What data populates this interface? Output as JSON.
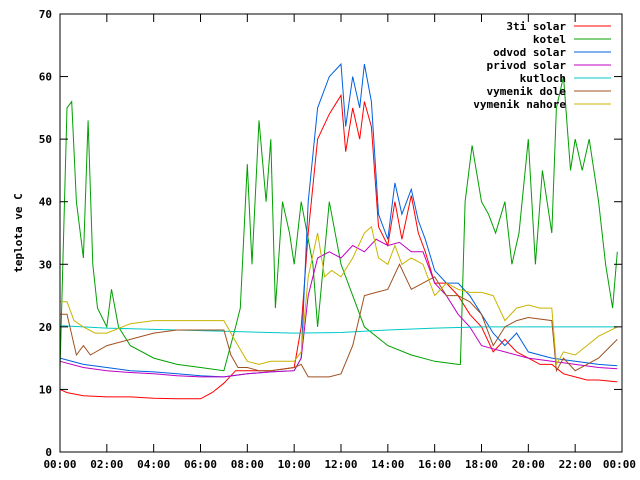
{
  "chart_data": {
    "type": "line",
    "title": "",
    "xlabel": "",
    "ylabel": "teplota ve C",
    "ylim": [
      0,
      70
    ],
    "yticks": [
      0,
      10,
      20,
      30,
      40,
      50,
      60,
      70
    ],
    "xlim": [
      0,
      24
    ],
    "xticks": [
      "00:00",
      "02:00",
      "04:00",
      "06:00",
      "08:00",
      "10:00",
      "12:00",
      "14:00",
      "16:00",
      "18:00",
      "20:00",
      "22:00",
      "00:00"
    ],
    "grid": false,
    "legend_position": "top-right",
    "series": [
      {
        "name": "3ti solar",
        "color": "#ff0000",
        "x": [
          0,
          0.3,
          1,
          2,
          3,
          4,
          5,
          6,
          6.5,
          7,
          7.5,
          8,
          9,
          10,
          10.3,
          10.6,
          11,
          11.5,
          12,
          12.2,
          12.5,
          12.8,
          13,
          13.3,
          13.6,
          14,
          14.3,
          14.6,
          15,
          15.3,
          15.6,
          16,
          16.5,
          17,
          17.5,
          18,
          18.5,
          19,
          19.5,
          20,
          20.5,
          21,
          21.5,
          22,
          22.5,
          23,
          23.8
        ],
        "y": [
          10,
          9.5,
          9,
          8.8,
          8.8,
          8.6,
          8.5,
          8.5,
          9.5,
          11,
          13,
          13,
          13,
          13.5,
          20,
          35,
          50,
          54,
          57,
          48,
          55,
          50,
          56,
          52,
          36,
          33,
          40,
          34,
          41,
          35,
          32,
          27,
          27,
          25,
          22,
          20,
          16,
          18,
          16,
          15,
          14,
          14,
          12.5,
          12,
          11.5,
          11.5,
          11.2
        ]
      },
      {
        "name": "kotel",
        "color": "#00a000",
        "x": [
          0,
          0.3,
          0.5,
          0.7,
          1,
          1.2,
          1.4,
          1.6,
          2,
          2.2,
          2.5,
          3,
          4,
          5,
          6,
          7,
          7.5,
          7.7,
          8,
          8.2,
          8.5,
          8.8,
          9,
          9.2,
          9.5,
          9.8,
          10,
          10.3,
          10.8,
          11,
          11.5,
          12,
          12.5,
          13,
          14,
          15,
          16,
          17,
          17.1,
          17.3,
          17.6,
          18,
          18.3,
          18.6,
          19,
          19.3,
          19.6,
          20,
          20.3,
          20.6,
          21,
          21.2,
          21.5,
          21.8,
          22,
          22.3,
          22.6,
          23,
          23.3,
          23.6,
          23.8
        ],
        "y": [
          13,
          55,
          56,
          40,
          31,
          53,
          30,
          23,
          20,
          26,
          20,
          17,
          15,
          14,
          13.5,
          13,
          20,
          23,
          46,
          30,
          53,
          40,
          50,
          23,
          40,
          35,
          30,
          40,
          30,
          20,
          40,
          30,
          25,
          20,
          17,
          15.5,
          14.5,
          14,
          14,
          40,
          49,
          40,
          38,
          35,
          40,
          30,
          35,
          50,
          30,
          45,
          35,
          55,
          60,
          45,
          50,
          45,
          50,
          40,
          30,
          23,
          32
        ]
      },
      {
        "name": "odvod solar",
        "color": "#0060e0",
        "x": [
          0,
          1,
          2,
          3,
          4,
          5,
          6,
          7,
          8,
          9,
          10,
          10.3,
          10.6,
          11,
          11.5,
          12,
          12.2,
          12.5,
          12.8,
          13,
          13.3,
          13.6,
          14,
          14.3,
          14.6,
          15,
          15.3,
          15.6,
          16,
          16.5,
          17,
          17.5,
          18,
          18.5,
          19,
          19.5,
          20,
          21,
          22,
          23,
          23.8
        ],
        "y": [
          15,
          14,
          13.5,
          13,
          12.8,
          12.5,
          12.2,
          12,
          12.5,
          12.8,
          13,
          15,
          40,
          55,
          60,
          62,
          52,
          60,
          55,
          62,
          56,
          38,
          34,
          43,
          38,
          42,
          37,
          34,
          29,
          27,
          27,
          25,
          22,
          19,
          17,
          19,
          16,
          15,
          14.5,
          14,
          13.8
        ]
      },
      {
        "name": "privod solar",
        "color": "#c000c0",
        "x": [
          0,
          1,
          2,
          3,
          4,
          5,
          6,
          7,
          8,
          9,
          10,
          10.3,
          10.6,
          11,
          11.5,
          12,
          12.5,
          13,
          13.5,
          14,
          14.5,
          15,
          15.5,
          16,
          16.5,
          17,
          17.5,
          18,
          18.5,
          19,
          20,
          21,
          22,
          23,
          23.8
        ],
        "y": [
          14.5,
          13.5,
          13,
          12.7,
          12.5,
          12.2,
          12,
          12,
          12.5,
          12.8,
          13,
          15,
          25,
          31,
          32,
          31,
          33,
          32,
          34,
          33,
          33.5,
          32,
          32,
          27,
          25,
          22,
          20,
          17,
          16.5,
          16,
          15,
          14.5,
          14,
          13.5,
          13.3
        ]
      },
      {
        "name": "kutloch",
        "color": "#00c8c8",
        "x": [
          0,
          2,
          4,
          6,
          8,
          10,
          12,
          14,
          16,
          18,
          20,
          22,
          23.8
        ],
        "y": [
          20.2,
          19.8,
          19.6,
          19.4,
          19.2,
          19,
          19.1,
          19.5,
          19.8,
          20,
          20,
          20,
          20
        ]
      },
      {
        "name": "vymenik dole",
        "color": "#a05020",
        "x": [
          0,
          0.3,
          0.7,
          1,
          1.3,
          2,
          3,
          4,
          5,
          6,
          7,
          7.3,
          7.6,
          8,
          8.5,
          9,
          10,
          10.3,
          10.6,
          11,
          11.5,
          12,
          12.5,
          13,
          13.5,
          14,
          14.5,
          15,
          15.5,
          16,
          16.5,
          17,
          17.5,
          18,
          18.5,
          19,
          19.5,
          20,
          21,
          21.2,
          21.5,
          22,
          22.5,
          23,
          23.8
        ],
        "y": [
          22,
          22,
          15.5,
          17,
          15.5,
          17,
          18,
          19,
          19.5,
          19.5,
          19.5,
          15.5,
          13.5,
          13.5,
          13,
          13,
          13.5,
          14,
          12,
          12,
          12,
          12.5,
          17,
          25,
          25.5,
          26,
          30,
          26,
          27,
          28,
          25,
          25,
          24,
          22,
          17,
          20,
          21,
          21.5,
          21,
          13,
          15,
          13,
          14,
          15,
          18
        ]
      },
      {
        "name": "vymenik nahore",
        "color": "#c8b400",
        "x": [
          0,
          0.3,
          0.6,
          1,
          1.5,
          2,
          3,
          4,
          5,
          6,
          7,
          7.3,
          7.6,
          8,
          8.5,
          9,
          10,
          10.3,
          10.6,
          11,
          11.3,
          11.6,
          12,
          12.5,
          13,
          13.3,
          13.6,
          14,
          14.3,
          14.6,
          15,
          15.5,
          16,
          16.5,
          17,
          17.5,
          18,
          18.5,
          19,
          19.5,
          20,
          20.5,
          21,
          21.2,
          21.5,
          22,
          22.5,
          23,
          23.8
        ],
        "y": [
          24,
          24,
          21,
          20,
          19,
          19,
          20.5,
          21,
          21,
          21,
          21,
          19,
          17,
          14.5,
          14,
          14.5,
          14.5,
          16,
          28,
          35,
          28,
          29,
          28,
          31,
          35,
          36,
          31,
          30,
          33,
          30,
          31,
          30,
          25,
          27,
          26,
          25.5,
          25.5,
          25,
          21,
          23,
          23.5,
          23,
          23,
          14,
          16,
          15.5,
          17,
          18.5,
          20
        ]
      }
    ]
  }
}
